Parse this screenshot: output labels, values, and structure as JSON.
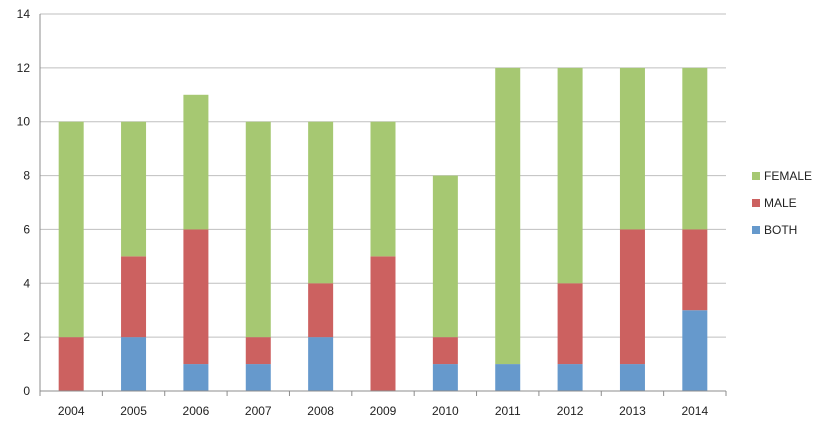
{
  "chart_data": {
    "type": "bar",
    "stacked": true,
    "title": "",
    "xlabel": "",
    "ylabel": "",
    "categories": [
      "2004",
      "2005",
      "2006",
      "2007",
      "2008",
      "2009",
      "2010",
      "2011",
      "2012",
      "2013",
      "2014"
    ],
    "ylim": [
      0,
      14
    ],
    "yticks": [
      0,
      2,
      4,
      6,
      8,
      10,
      12,
      14
    ],
    "grid": true,
    "legend_position": "right",
    "series": [
      {
        "name": "BOTH",
        "color": "#6699cc",
        "values": [
          0,
          2,
          1,
          1,
          2,
          0,
          1,
          1,
          1,
          1,
          3
        ]
      },
      {
        "name": "MALE",
        "color": "#cc6160",
        "values": [
          2,
          3,
          5,
          1,
          2,
          5,
          1,
          0,
          3,
          5,
          3
        ]
      },
      {
        "name": "FEMALE",
        "color": "#a6c872",
        "values": [
          8,
          5,
          5,
          8,
          6,
          5,
          6,
          11,
          8,
          6,
          6
        ]
      }
    ],
    "legend_order": [
      "FEMALE",
      "MALE",
      "BOTH"
    ]
  }
}
